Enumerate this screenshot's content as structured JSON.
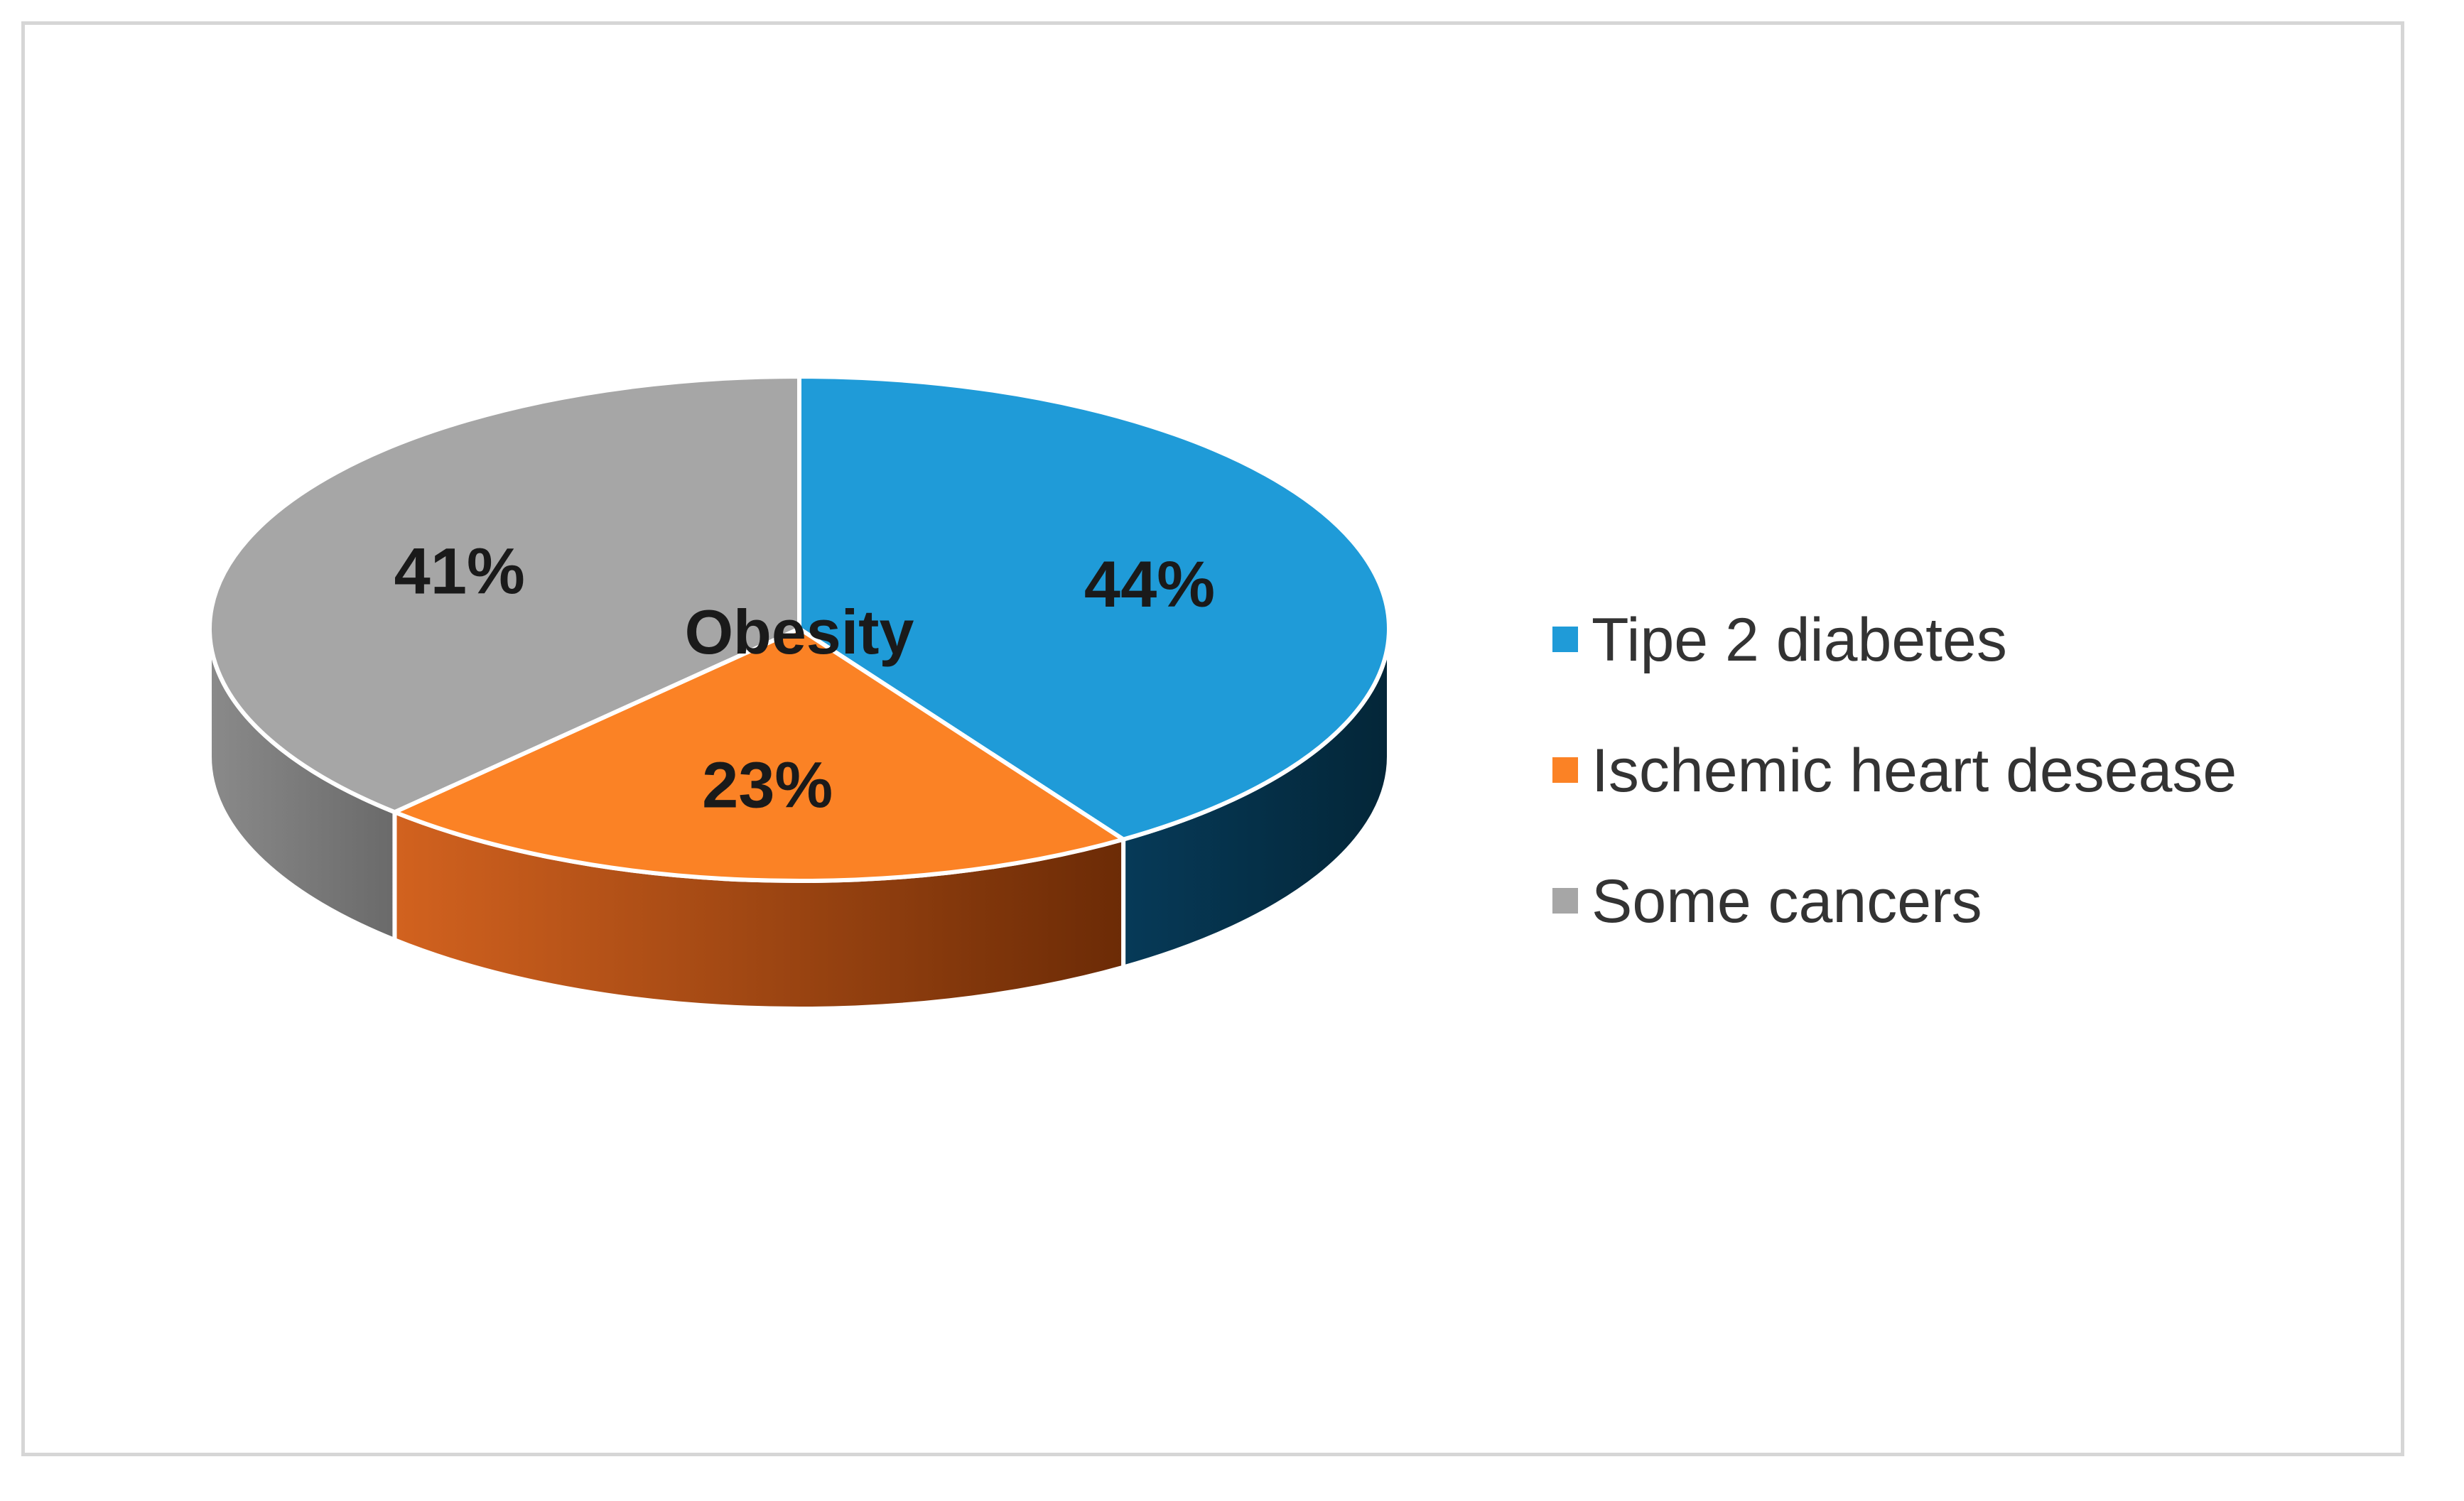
{
  "chart_data": {
    "type": "pie",
    "title": "",
    "center_label": "Obesity",
    "categories": [
      "Tipe 2 diabetes",
      "Ischemic heart desease",
      "Some cancers"
    ],
    "values": [
      44,
      23,
      41
    ],
    "value_labels": [
      "44%",
      "23%",
      "41%"
    ],
    "colors": [
      "#1f9bd8",
      "#fb8225",
      "#a6a6a6"
    ],
    "side_colors": [
      "#063049",
      "#b14b12",
      "#7a7a7a"
    ],
    "legend_position": "right",
    "style": "3d"
  }
}
